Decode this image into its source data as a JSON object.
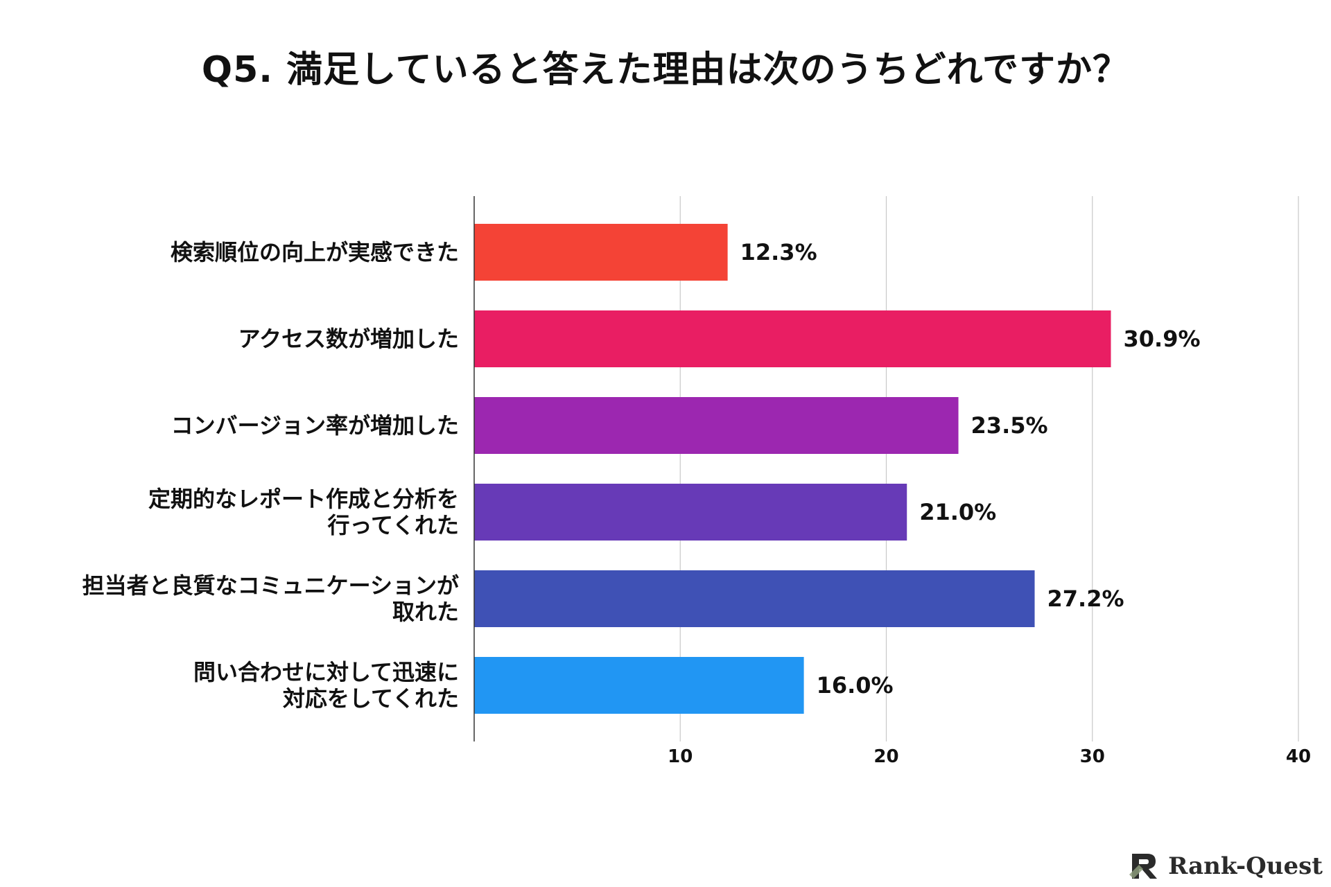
{
  "chart_data": {
    "type": "bar",
    "orientation": "horizontal",
    "title": "Q5. 満足していると答えた理由は次のうちどれですか？",
    "categories": [
      [
        "検索順位の向上が実感できた"
      ],
      [
        "アクセス数が増加した"
      ],
      [
        "コンバージョン率が増加した"
      ],
      [
        "定期的なレポート作成と分析を",
        "行ってくれた"
      ],
      [
        "担当者と良質なコミュニケーションが",
        "取れた"
      ],
      [
        "問い合わせに対して迅速に",
        "対応をしてくれた"
      ]
    ],
    "values": [
      12.3,
      30.9,
      23.5,
      21.0,
      27.2,
      16.0
    ],
    "value_labels": [
      "12.3%",
      "30.9%",
      "23.5%",
      "21.0%",
      "27.2%",
      "16.0%"
    ],
    "colors": [
      "#F44336",
      "#E91E63",
      "#9C27B0",
      "#673AB7",
      "#3F51B5",
      "#2196F3"
    ],
    "xlim": [
      0,
      40
    ],
    "xticks": [
      10,
      20,
      30,
      40
    ],
    "xtick_labels": [
      "10",
      "20",
      "30",
      "40"
    ],
    "grid": true,
    "legend": "none"
  },
  "brand": {
    "name": "Rank-Quest",
    "icon": "rank-quest-logo-icon"
  }
}
